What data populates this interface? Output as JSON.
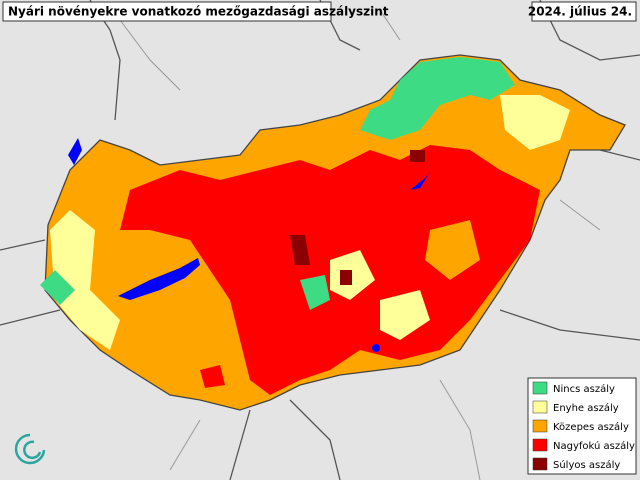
{
  "header": {
    "title": "Nyári növényekre vonatkozó mezőgazdasági aszályszint",
    "date": "2024. július 24."
  },
  "legend": {
    "items": [
      {
        "label": "Nincs aszály",
        "color": "#3ddc84"
      },
      {
        "label": "Enyhe aszály",
        "color": "#ffff99"
      },
      {
        "label": "Közepes aszály",
        "color": "#ffa500"
      },
      {
        "label": "Nagyfokú aszály",
        "color": "#ff0000"
      },
      {
        "label": "Súlyos aszály",
        "color": "#8b0000"
      }
    ]
  }
}
